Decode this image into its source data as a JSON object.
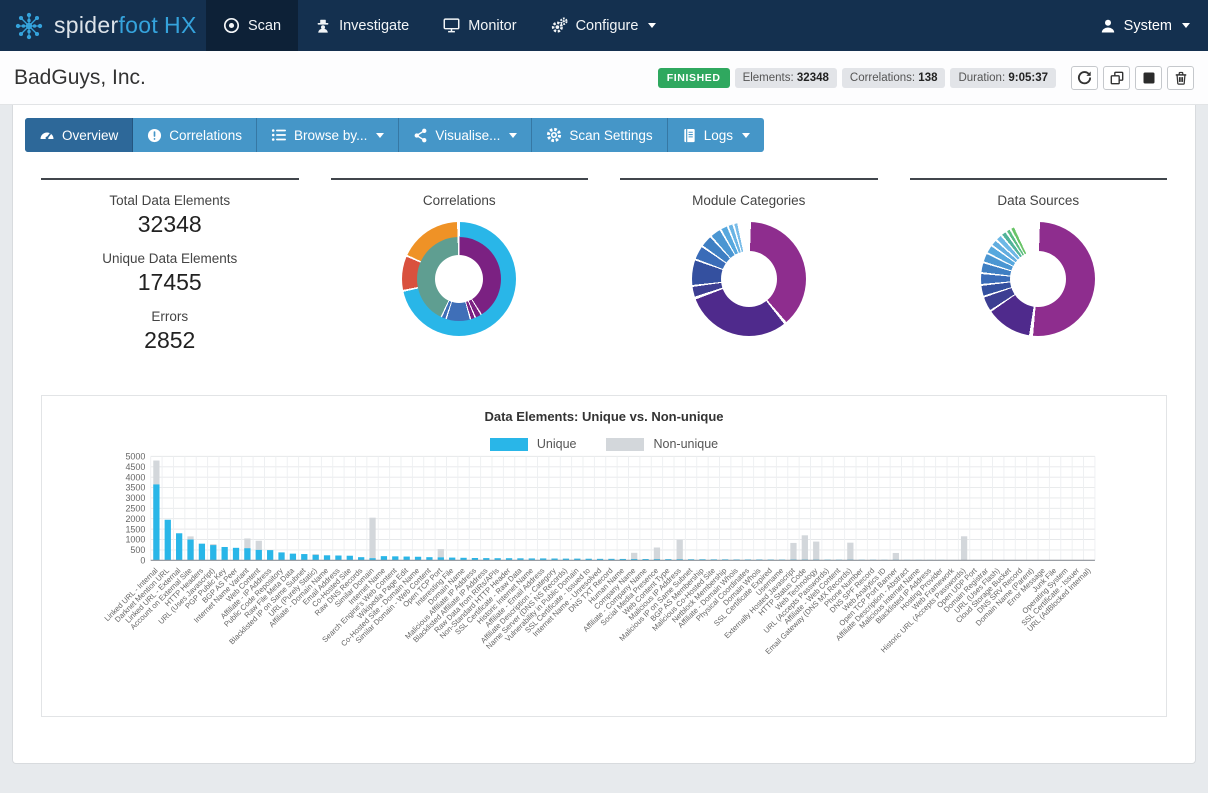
{
  "colors": {
    "navbar_bg": "#14304f",
    "navbar_active_bg": "#0d2137",
    "brand_accent": "#35a3dc",
    "tabbar_bg": "#4596c8",
    "tab_active_bg": "#2d6899",
    "status_green": "#2fa85f",
    "badge_gray": "#e2e4e8",
    "unique_cyan": "#29b6e8",
    "nonunique_gray": "#d3d7db",
    "panel_top_border": "#41464c"
  },
  "navbar": {
    "brand": {
      "spider": "spider",
      "foot": "foot",
      "hx": "HX"
    },
    "items": [
      {
        "label": "Scan",
        "icon": "target-icon",
        "active": true
      },
      {
        "label": "Investigate",
        "icon": "detective-icon",
        "active": false
      },
      {
        "label": "Monitor",
        "icon": "monitor-icon",
        "active": false
      },
      {
        "label": "Configure",
        "icon": "gears-icon",
        "active": false,
        "caret": true
      }
    ],
    "user_label": "System"
  },
  "header": {
    "title": "BadGuys, Inc.",
    "status": "FINISHED",
    "badges": [
      {
        "label": "Elements:",
        "value": "32348"
      },
      {
        "label": "Correlations:",
        "value": "138"
      },
      {
        "label": "Duration:",
        "value": "9:05:37"
      }
    ],
    "actions": [
      "refresh",
      "clone",
      "stop",
      "delete"
    ]
  },
  "tabs": [
    {
      "label": "Overview",
      "icon": "gauge-icon",
      "active": true,
      "caret": false
    },
    {
      "label": "Correlations",
      "icon": "alert-circle-icon",
      "active": false,
      "caret": false
    },
    {
      "label": "Browse by...",
      "icon": "list-icon",
      "active": false,
      "caret": true
    },
    {
      "label": "Visualise...",
      "icon": "share-icon",
      "active": false,
      "caret": true
    },
    {
      "label": "Scan Settings",
      "icon": "gear-icon",
      "active": false,
      "caret": false
    },
    {
      "label": "Logs",
      "icon": "journal-icon",
      "active": false,
      "caret": true
    }
  ],
  "stats": {
    "items": [
      {
        "label": "Total Data Elements",
        "value": "32348"
      },
      {
        "label": "Unique Data Elements",
        "value": "17455"
      },
      {
        "label": "Errors",
        "value": "2852"
      }
    ]
  },
  "donuts": [
    {
      "title": "Correlations",
      "rings": {
        "outer": [
          [
            "#29b6e8",
            1,
            257
          ],
          [
            "#d9513e",
            259,
            293
          ],
          [
            "#ef9226",
            295,
            358
          ]
        ],
        "inner": [
          [
            "#7b2182",
            1,
            147
          ],
          [
            "#7b2182",
            149,
            156
          ],
          [
            "#7b2182",
            158,
            163
          ],
          [
            "#3f6fb8",
            165,
            197
          ],
          [
            "#3f6fb8",
            199,
            204
          ],
          [
            "#5f9e91",
            206,
            358
          ]
        ]
      }
    },
    {
      "title": "Module Categories",
      "rings": {
        "outer": [
          [
            "#8e2d8e",
            2,
            139
          ],
          [
            "#4f2a8c",
            142,
            249
          ],
          [
            "#3d3e92",
            252,
            262
          ],
          [
            "#34509f",
            264,
            289
          ],
          [
            "#3a6cb8",
            291,
            304
          ],
          [
            "#3f7fc3",
            306,
            317
          ],
          [
            "#4b96d2",
            319,
            329
          ],
          [
            "#57a8de",
            331,
            337
          ],
          [
            "#6ab4e4",
            339,
            343
          ],
          [
            "#79bce8",
            345,
            348
          ]
        ],
        "inner": null
      }
    },
    {
      "title": "Data Sources",
      "rings": {
        "outer": [
          [
            "#8e2d8e",
            2,
            185
          ],
          [
            "#4f2a8c",
            189,
            235
          ],
          [
            "#3d3e92",
            237,
            251
          ],
          [
            "#34509f",
            253,
            263
          ],
          [
            "#3a6cb8",
            265,
            275
          ],
          [
            "#3f7fc3",
            277,
            286
          ],
          [
            "#4b96d2",
            288,
            296
          ],
          [
            "#57a8de",
            298,
            305
          ],
          [
            "#63aee0",
            307,
            312
          ],
          [
            "#6db8e6",
            314,
            319
          ],
          [
            "#52b39a",
            321,
            325
          ],
          [
            "#5bbd82",
            327,
            330
          ],
          [
            "#6ac468",
            332,
            335
          ]
        ],
        "inner": null
      }
    }
  ],
  "chart_data": {
    "type": "bar",
    "stacked": true,
    "title": "Data Elements: Unique vs. Non-unique",
    "xlabel": "",
    "ylabel": "",
    "ylim": [
      0,
      5000
    ],
    "yticks": [
      0,
      500,
      1000,
      1500,
      2000,
      2500,
      3000,
      3500,
      4000,
      4500,
      5000
    ],
    "grid": true,
    "legend_position": "top",
    "colors": {
      "unique": "#29b6e8",
      "nonunique": "#d3d7db"
    },
    "categories": [
      "Linked URL - Internal",
      "Darknet Mention URL",
      "Linked URL - External",
      "Account on External Site",
      "HTTP Headers",
      "URL (Uses Javascript)",
      "PGP Public Key",
      "BGP AS Peer",
      "Internet Name Variant",
      "Web Content",
      "Affiliate - IP Address",
      "Public Code Repository",
      "Raw File Meta Data",
      "Blacklisted IP on Same Subnet",
      "URL (Purely Static)",
      "Affiliate - Domain Name",
      "Email Address",
      "Co-Hosted Site",
      "Raw DNS Records",
      "Similar Domain",
      "Internet Name",
      "Search Engine's Web Content",
      "Wikipedia Page Edit",
      "Co-Hosted Site - Domain Name",
      "Similar Domain - Web Content",
      "Open TCP Port",
      "Interesting File",
      "Domain Name",
      "Malicious Affiliate IP Address",
      "Blacklisted Affiliate IP Address",
      "Raw Data from RIRs/APIs",
      "Non-Standard HTTP Header",
      "SSL Certificate - Raw Data",
      "Historic Internet Name",
      "Affiliate - Email Address",
      "Affiliate Description - Category",
      "Name Server (DNS NS Records)",
      "Vulnerability in Public Domain",
      "SSL Certificate - Issued to",
      "Internet Name - Unresolved",
      "DNS TXT Record",
      "Human Name",
      "Company Name",
      "Affiliate - Company Name",
      "Social Media Presence",
      "Web Content Type",
      "Malicious IP Address",
      "Malicious IP on Same Subnet",
      "BGP AS Membership",
      "Malicious Co-Hosted Site",
      "Netblock Membership",
      "Affiliate - Domain Whois",
      "Physical Coordinates",
      "Domain Whois",
      "SSL Certificate Expired",
      "Username",
      "Externally Hosted Javascript",
      "HTTP Status Code",
      "Web Technology",
      "URL (Accepts Passwords)",
      "Affiliate - Web Content",
      "Email Gateway (DNS MX Records)",
      "Phone Number",
      "DNS SPF Record",
      "Web Analytics ID",
      "Open TCP Port Banner",
      "Affiliate Description - Abstract",
      "Malicious Internet Name",
      "Blacklisted IP Address",
      "Hosting Provider",
      "Web Framework",
      "Historic URL (Accepts Passwords)",
      "Open UDP Port",
      "Domain Registrar",
      "URL (Uses Flash)",
      "Cloud Storage Bucket",
      "DNS SRV Record",
      "Domain Name (Parent)",
      "Error Message",
      "Junk File",
      "Operating System",
      "SSL Certificate - Issuer",
      "URL (AdBlocked Internal)"
    ],
    "series": [
      {
        "name": "Unique",
        "values": [
          3650,
          1950,
          1300,
          1000,
          800,
          730,
          640,
          600,
          580,
          500,
          490,
          380,
          320,
          300,
          260,
          240,
          230,
          220,
          150,
          100,
          200,
          190,
          180,
          170,
          150,
          140,
          130,
          120,
          110,
          105,
          100,
          100,
          95,
          90,
          90,
          85,
          80,
          80,
          75,
          70,
          70,
          65,
          60,
          60,
          55,
          55,
          50,
          50,
          50,
          45,
          45,
          40,
          40,
          40,
          38,
          35,
          35,
          32,
          30,
          30,
          28,
          28,
          25,
          25,
          22,
          22,
          20,
          20,
          18,
          18,
          15,
          15,
          15,
          12,
          12,
          10,
          10,
          10,
          8,
          8,
          6,
          6,
          5
        ]
      },
      {
        "name": "Non-unique",
        "values": [
          1150,
          0,
          0,
          150,
          0,
          50,
          0,
          0,
          470,
          440,
          0,
          0,
          0,
          0,
          40,
          0,
          0,
          0,
          0,
          1950,
          0,
          0,
          0,
          0,
          0,
          400,
          0,
          0,
          0,
          0,
          0,
          0,
          0,
          0,
          0,
          0,
          0,
          0,
          0,
          0,
          0,
          0,
          300,
          0,
          560,
          0,
          940,
          0,
          0,
          0,
          0,
          0,
          0,
          0,
          0,
          0,
          800,
          1170,
          870,
          0,
          0,
          820,
          0,
          0,
          0,
          330,
          0,
          0,
          0,
          0,
          0,
          1140,
          0,
          0,
          0,
          0,
          0,
          0,
          0,
          0,
          0,
          0,
          0
        ]
      }
    ]
  }
}
